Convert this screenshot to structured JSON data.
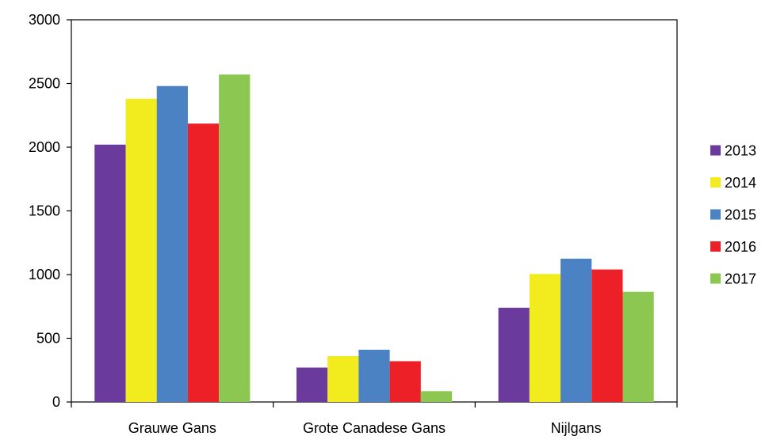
{
  "chart_data": {
    "type": "bar",
    "categories": [
      "Grauwe Gans",
      "Grote Canadese Gans",
      "Nijlgans"
    ],
    "series": [
      {
        "name": "2013",
        "color": "#6a3a9c",
        "values": [
          2020,
          270,
          740
        ]
      },
      {
        "name": "2014",
        "color": "#f2eb1e",
        "values": [
          2380,
          360,
          1005
        ]
      },
      {
        "name": "2015",
        "color": "#4a82c3",
        "values": [
          2480,
          410,
          1125
        ]
      },
      {
        "name": "2016",
        "color": "#ee2027",
        "values": [
          2185,
          320,
          1040
        ]
      },
      {
        "name": "2017",
        "color": "#8cc751",
        "values": [
          2570,
          85,
          865
        ]
      }
    ],
    "ylim": [
      0,
      3000
    ],
    "yticks": [
      0,
      500,
      1000,
      1500,
      2000,
      2500,
      3000
    ],
    "grid": false,
    "legend_position": "right",
    "title": "",
    "xlabel": "",
    "ylabel": ""
  }
}
